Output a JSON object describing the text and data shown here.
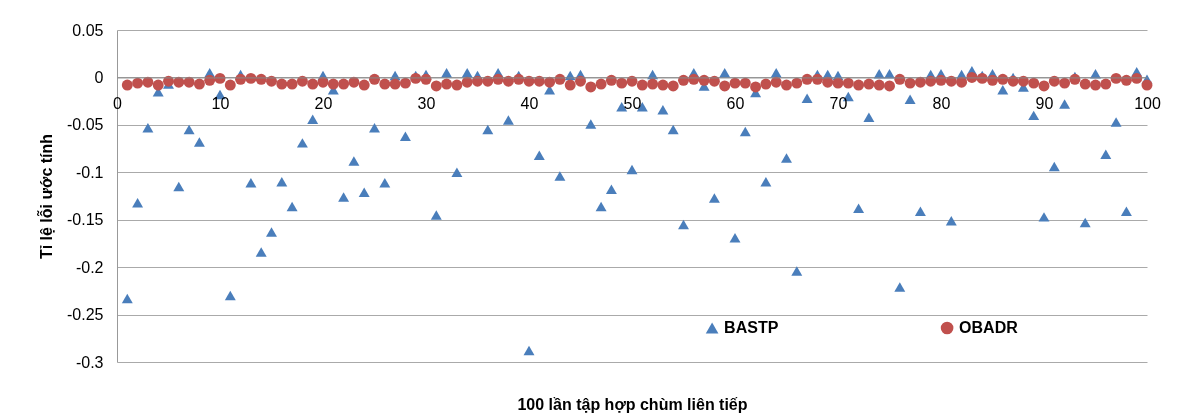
{
  "chart_data": {
    "type": "scatter",
    "xlabel": "100 lần tập hợp chùm liên tiếp",
    "ylabel": "Tỉ lệ lỗi ước tính",
    "x": [
      1,
      2,
      3,
      4,
      5,
      6,
      7,
      8,
      9,
      10,
      11,
      12,
      13,
      14,
      15,
      16,
      17,
      18,
      19,
      20,
      21,
      22,
      23,
      24,
      25,
      26,
      27,
      28,
      29,
      30,
      31,
      32,
      33,
      34,
      35,
      36,
      37,
      38,
      39,
      40,
      41,
      42,
      43,
      44,
      45,
      46,
      47,
      48,
      49,
      50,
      51,
      52,
      53,
      54,
      55,
      56,
      57,
      58,
      59,
      60,
      61,
      62,
      63,
      64,
      65,
      66,
      67,
      68,
      69,
      70,
      71,
      72,
      73,
      74,
      75,
      76,
      77,
      78,
      79,
      80,
      81,
      82,
      83,
      84,
      85,
      86,
      87,
      88,
      89,
      90,
      91,
      92,
      93,
      94,
      95,
      96,
      97,
      98,
      99,
      100
    ],
    "series": [
      {
        "name": "BASTP",
        "color": "#4a7ebb",
        "marker": "triangle",
        "values": [
          -0.233,
          -0.132,
          -0.053,
          -0.015,
          -0.007,
          -0.115,
          -0.055,
          -0.068,
          0.005,
          -0.018,
          -0.23,
          0.003,
          -0.111,
          -0.184,
          -0.163,
          -0.11,
          -0.136,
          -0.069,
          -0.044,
          0.002,
          -0.013,
          -0.126,
          -0.088,
          -0.121,
          -0.053,
          -0.111,
          0.002,
          -0.062,
          0.002,
          0.003,
          -0.145,
          0.005,
          -0.1,
          0.005,
          0.002,
          -0.055,
          0.005,
          -0.045,
          0.002,
          -0.288,
          -0.082,
          -0.013,
          -0.104,
          0.002,
          0.003,
          -0.049,
          -0.136,
          -0.118,
          -0.031,
          -0.097,
          -0.031,
          0.003,
          -0.034,
          -0.055,
          -0.155,
          0.005,
          -0.009,
          -0.127,
          0.005,
          -0.169,
          -0.057,
          -0.016,
          -0.11,
          0.005,
          -0.085,
          -0.204,
          -0.022,
          0.003,
          0.003,
          0.002,
          -0.02,
          -0.138,
          -0.042,
          0.004,
          0.004,
          -0.221,
          -0.023,
          -0.141,
          0.003,
          0.004,
          -0.151,
          0.003,
          0.007,
          0.002,
          0.004,
          -0.013,
          0,
          -0.01,
          -0.04,
          -0.147,
          -0.094,
          -0.028,
          0.001,
          -0.153,
          0.004,
          -0.081,
          -0.047,
          -0.141,
          0.006,
          -0.002
        ]
      },
      {
        "name": "OBADR",
        "color": "#c0504d",
        "marker": "circle",
        "values": [
          -0.008,
          -0.006,
          -0.005,
          -0.008,
          -0.004,
          -0.005,
          -0.005,
          -0.007,
          -0.003,
          -0.001,
          -0.008,
          -0.002,
          -0.001,
          -0.002,
          -0.004,
          -0.007,
          -0.007,
          -0.004,
          -0.007,
          -0.005,
          -0.007,
          -0.007,
          -0.005,
          -0.008,
          -0.002,
          -0.007,
          -0.007,
          -0.006,
          -0.001,
          -0.002,
          -0.009,
          -0.007,
          -0.008,
          -0.005,
          -0.004,
          -0.004,
          -0.002,
          -0.004,
          -0.002,
          -0.004,
          -0.004,
          -0.005,
          -0.002,
          -0.008,
          -0.004,
          -0.01,
          -0.007,
          -0.003,
          -0.006,
          -0.004,
          -0.008,
          -0.007,
          -0.008,
          -0.009,
          -0.003,
          -0.002,
          -0.003,
          -0.004,
          -0.009,
          -0.006,
          -0.006,
          -0.01,
          -0.007,
          -0.005,
          -0.008,
          -0.006,
          -0.002,
          -0.002,
          -0.005,
          -0.006,
          -0.006,
          -0.008,
          -0.007,
          -0.008,
          -0.009,
          -0.002,
          -0.006,
          -0.005,
          -0.004,
          -0.003,
          -0.004,
          -0.005,
          0,
          -0.001,
          -0.003,
          -0.002,
          -0.004,
          -0.004,
          -0.006,
          -0.009,
          -0.004,
          -0.006,
          -0.002,
          -0.007,
          -0.008,
          -0.007,
          -0.001,
          -0.003,
          -0.001,
          -0.008
        ]
      }
    ],
    "xlim": [
      0,
      100
    ],
    "xticks": [
      0,
      10,
      20,
      30,
      40,
      50,
      60,
      70,
      80,
      90,
      100
    ],
    "ylim": [
      -0.3,
      0.05
    ],
    "yticks": [
      0.05,
      0,
      -0.05,
      -0.1,
      -0.15,
      -0.2,
      -0.25,
      -0.3
    ],
    "grid": "y",
    "legend": "bottom right"
  }
}
